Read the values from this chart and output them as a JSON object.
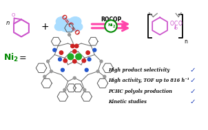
{
  "bg_color": "#ffffff",
  "bullet_items": [
    "High product selectivity",
    "High activity, TOF up to 816 h⁻¹",
    "PCHC polyols production",
    "Kinetic studies"
  ],
  "bullet_color": "#111111",
  "check_color": "#2244bb",
  "ni2_label_color": "#008800",
  "arrow_color": "#ff44aa",
  "ni2_circle_color": "#008800",
  "epoxide_color": "#cc55cc",
  "co2_color": "#cc2222",
  "co2_cloud_color": "#aaddff",
  "polymer_color": "#cc55cc",
  "figsize": [
    3.02,
    1.89
  ],
  "dpi": 100
}
